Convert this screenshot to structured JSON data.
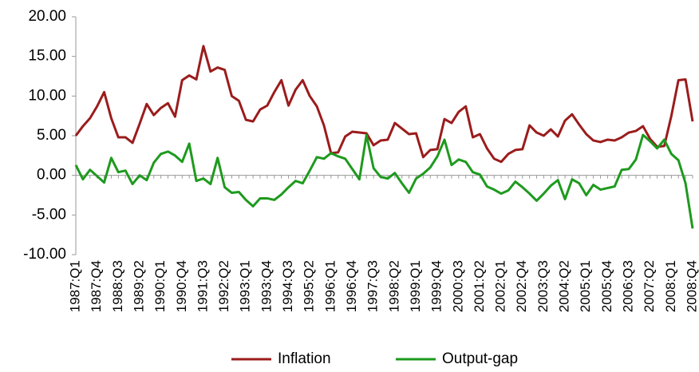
{
  "chart_data": {
    "type": "line",
    "categories": [
      "1987:Q1",
      null,
      null,
      "1987:Q4",
      null,
      null,
      "1988:Q3",
      null,
      null,
      "1989:Q2",
      null,
      null,
      "1990:Q1",
      null,
      null,
      "1990:Q4",
      null,
      null,
      "1991:Q3",
      null,
      null,
      "1992:Q2",
      null,
      null,
      "1993:Q1",
      null,
      null,
      "1993:Q4",
      null,
      null,
      "1994:Q3",
      null,
      null,
      "1995:Q2",
      null,
      null,
      "1996:Q1",
      null,
      null,
      "1996:Q4",
      null,
      null,
      "1997:Q3",
      null,
      null,
      "1998:Q2",
      null,
      null,
      "1999:Q1",
      null,
      null,
      "1999:Q4",
      null,
      null,
      "2000:Q3",
      null,
      null,
      "2001:Q2",
      null,
      null,
      "2002:Q1",
      null,
      null,
      "2002:Q4",
      null,
      null,
      "2003:Q3",
      null,
      null,
      "2004:Q2",
      null,
      null,
      "2005:Q1",
      null,
      null,
      "2005:Q4",
      null,
      null,
      "2006:Q3",
      null,
      null,
      "2007:Q2",
      null,
      null,
      "2008:Q1",
      null,
      null,
      "2008:Q4"
    ],
    "series": [
      {
        "name": "Inflation",
        "color": "#9b1c1c",
        "values": [
          5.0,
          6.2,
          7.2,
          8.7,
          10.5,
          7.2,
          4.8,
          4.8,
          4.1,
          6.5,
          9.0,
          7.6,
          8.5,
          9.1,
          7.4,
          12.0,
          12.6,
          12.1,
          16.3,
          13.1,
          13.6,
          13.3,
          10.0,
          9.4,
          7.0,
          6.8,
          8.3,
          8.8,
          10.5,
          12.0,
          8.8,
          10.8,
          12.0,
          10.0,
          8.7,
          6.3,
          2.8,
          2.9,
          4.9,
          5.5,
          5.4,
          5.3,
          3.8,
          4.4,
          4.5,
          6.6,
          5.9,
          5.2,
          5.3,
          2.3,
          3.2,
          3.3,
          7.1,
          6.6,
          8.0,
          8.7,
          4.8,
          5.2,
          3.4,
          2.1,
          1.7,
          2.7,
          3.2,
          3.3,
          6.3,
          5.4,
          5.0,
          5.8,
          4.9,
          6.9,
          7.7,
          6.4,
          5.2,
          4.4,
          4.2,
          4.5,
          4.4,
          4.8,
          5.4,
          5.6,
          6.2,
          4.6,
          3.6,
          3.7,
          7.5,
          12.0,
          12.1,
          6.8
        ]
      },
      {
        "name": "Output-gap",
        "color": "#1e9a1e",
        "values": [
          1.3,
          -0.5,
          0.7,
          -0.1,
          -0.9,
          2.2,
          0.4,
          0.6,
          -1.1,
          0.0,
          -0.6,
          1.6,
          2.7,
          3.0,
          2.5,
          1.7,
          4.0,
          -0.7,
          -0.4,
          -1.1,
          2.2,
          -1.5,
          -2.2,
          -2.1,
          -3.1,
          -3.9,
          -2.9,
          -2.9,
          -3.1,
          -2.4,
          -1.5,
          -0.7,
          -1.0,
          0.6,
          2.3,
          2.1,
          2.8,
          2.4,
          2.1,
          0.8,
          -0.5,
          5.1,
          0.9,
          -0.2,
          -0.4,
          0.3,
          -1.0,
          -2.2,
          -0.4,
          0.2,
          1.0,
          2.4,
          4.5,
          1.3,
          2.0,
          1.7,
          0.4,
          0.1,
          -1.4,
          -1.8,
          -2.3,
          -1.9,
          -0.8,
          -1.5,
          -2.3,
          -3.2,
          -2.3,
          -1.3,
          -0.6,
          -3.0,
          -0.5,
          -1.0,
          -2.5,
          -1.2,
          -1.8,
          -1.6,
          -1.4,
          0.7,
          0.8,
          2.0,
          5.1,
          4.3,
          3.4,
          4.5,
          2.7,
          1.9,
          -1.0,
          -6.7
        ]
      }
    ],
    "ylim": [
      -10,
      20
    ],
    "yticks": [
      {
        "value": -10,
        "label": "-10.00"
      },
      {
        "value": -5,
        "label": "-5.00"
      },
      {
        "value": 0,
        "label": "0.00"
      },
      {
        "value": 5,
        "label": "5.00"
      },
      {
        "value": 10,
        "label": "10.00"
      },
      {
        "value": 15,
        "label": "15.00"
      },
      {
        "value": 20,
        "label": "20.00"
      }
    ],
    "grid": false,
    "legend": "bottom"
  }
}
